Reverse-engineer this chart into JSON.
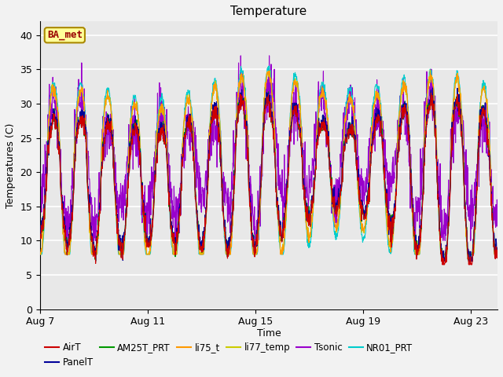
{
  "title": "Temperature",
  "xlabel": "Time",
  "ylabel": "Temperatures (C)",
  "ylim": [
    0,
    42
  ],
  "yticks": [
    0,
    5,
    10,
    15,
    20,
    25,
    30,
    35,
    40
  ],
  "plot_bg_color": "#e8e8e8",
  "fig_bg_color": "#f2f2f2",
  "legend_entries": [
    "AirT",
    "PanelT",
    "AM25T_PRT",
    "li75_t",
    "li77_temp",
    "Tsonic",
    "NR01_PRT"
  ],
  "legend_colors": [
    "#cc0000",
    "#000099",
    "#009900",
    "#ff9900",
    "#cccc00",
    "#9900cc",
    "#00cccc"
  ],
  "annotation_text": "BA_met",
  "annotation_bg": "#ffff99",
  "annotation_border": "#aa8800",
  "annotation_text_color": "#990000",
  "x_tick_labels": [
    "Aug 7",
    "Aug 11",
    "Aug 15",
    "Aug 19",
    "Aug 23"
  ],
  "figsize": [
    6.4,
    4.8
  ],
  "dpi": 100
}
